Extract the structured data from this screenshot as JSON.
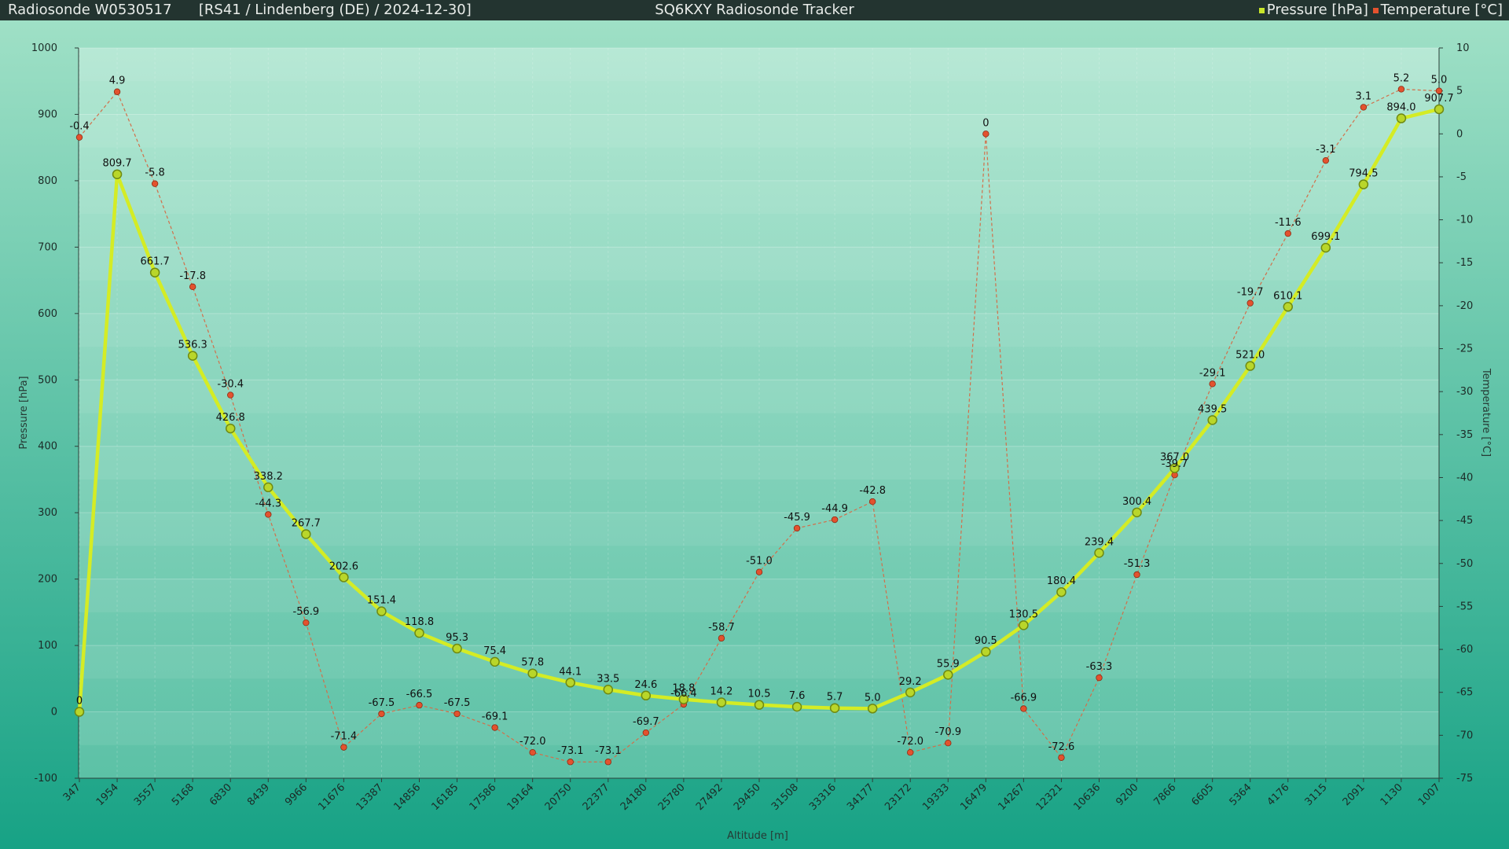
{
  "header": {
    "left_text": "Radiosonde W0530517      [RS41 / Lindenberg (DE) / 2024-12-30]",
    "title": "SQ6KXY Radiosonde Tracker",
    "colors": {
      "pressure": "#c8e62a",
      "temperature": "#e3522e"
    }
  },
  "chart_data": {
    "type": "line",
    "title": "SQ6KXY Radiosonde Tracker",
    "xlabel": "Altitude [m]",
    "ylabel": "Pressure [hPa]",
    "y2label": "Temperature [°C]",
    "ylim": [
      -100,
      1000
    ],
    "y2lim": [
      -75,
      10
    ],
    "yticks": [
      -100,
      0,
      100,
      200,
      300,
      400,
      500,
      600,
      700,
      800,
      900,
      1000
    ],
    "y2ticks": [
      -75,
      -70,
      -65,
      -60,
      -55,
      -50,
      -45,
      -40,
      -35,
      -30,
      -25,
      -20,
      -15,
      -10,
      -5,
      0,
      5,
      10
    ],
    "grid": true,
    "legend": "top-right",
    "categories": [
      "347",
      "1954",
      "3557",
      "5168",
      "6830",
      "8439",
      "9966",
      "11676",
      "13387",
      "14856",
      "16185",
      "17586",
      "19164",
      "20750",
      "22377",
      "24180",
      "25780",
      "27492",
      "29450",
      "31508",
      "33316",
      "34177",
      "23172",
      "19333",
      "16479",
      "14267",
      "12321",
      "10636",
      "9200",
      "7866",
      "6605",
      "5364",
      "4176",
      "3115",
      "2091",
      "1130",
      "1007"
    ],
    "series": [
      {
        "name": "Pressure [hPa]",
        "axis": "left",
        "values": [
          0,
          809.7,
          661.7,
          536.3,
          426.8,
          338.2,
          267.7,
          202.6,
          151.4,
          118.8,
          95.3,
          75.4,
          57.8,
          44.1,
          33.5,
          24.6,
          18.8,
          14.2,
          10.5,
          7.6,
          5.7,
          5.0,
          29.2,
          55.9,
          90.5,
          130.5,
          180.4,
          239.4,
          300.4,
          367.0,
          439.5,
          521.0,
          610.1,
          699.1,
          794.5,
          894.0,
          907.7
        ],
        "labels": [
          "0",
          "809.7",
          "661.7",
          "536.3",
          "426.8",
          "338.2",
          "267.7",
          "202.6",
          "151.4",
          "118.8",
          "95.3",
          "75.4",
          "57.8",
          "44.1",
          "33.5",
          "24.6",
          "18.8",
          "14.2",
          "10.5",
          "7.6",
          "5.7",
          "5.0",
          "29.2",
          "55.9",
          "90.5",
          "130.5",
          "180.4",
          "239.4",
          "300.4",
          "367.0",
          "439.5",
          "521.0",
          "610.1",
          "699.1",
          "794.5",
          "894.0",
          "907.7"
        ]
      },
      {
        "name": "Temperature [°C]",
        "axis": "right",
        "values": [
          -0.4,
          4.9,
          -5.8,
          -17.8,
          -30.4,
          -44.3,
          -56.9,
          -71.4,
          -67.5,
          -66.5,
          -67.5,
          -69.1,
          -72.0,
          -73.1,
          -73.1,
          -69.7,
          -66.4,
          -58.7,
          -51.0,
          -45.9,
          -44.9,
          -42.8,
          -72.0,
          -70.9,
          0,
          -66.9,
          -72.6,
          -63.3,
          -51.3,
          -39.7,
          -29.1,
          -19.7,
          -11.6,
          -3.1,
          3.1,
          5.2,
          5.0
        ],
        "labels": [
          "-0.4",
          "4.9",
          "-5.8",
          "-17.8",
          "-30.4",
          "-44.3",
          "-56.9",
          "-71.4",
          "-67.5",
          "-66.5",
          "-67.5",
          "-69.1",
          "-72.0",
          "-73.1",
          "-73.1",
          "-69.7",
          "-66.4",
          "-58.7",
          "-51.0",
          "-45.9",
          "-44.9",
          "-42.8",
          "-72.0",
          "-70.9",
          "0",
          "-66.9",
          "-72.6",
          "-63.3",
          "-51.3",
          "-39.7",
          "-29.1",
          "-19.7",
          "-11.6",
          "-3.1",
          "3.1",
          "5.2",
          "5.0"
        ]
      }
    ]
  }
}
